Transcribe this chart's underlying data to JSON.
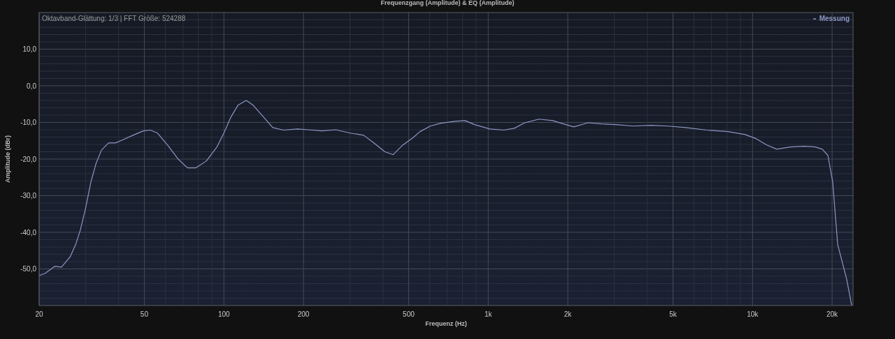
{
  "chart_data": {
    "type": "line",
    "title": "Frequenzgang (Amplitude) & EQ (Amplitude)",
    "xlabel": "Frequenz (Hz)",
    "ylabel": "Amplitude (dBr)",
    "annotations": [
      "Oktavband-Glättung: 1/3 | FFT Größe: 524288"
    ],
    "log": "x",
    "grid": true,
    "legend": "top right",
    "xlim": [
      20,
      24000
    ],
    "ylim": [
      -60,
      20
    ],
    "xticks": [
      20,
      {
        "value": 30,
        "label": null
      },
      {
        "value": 40,
        "label": null
      },
      50,
      {
        "value": 60,
        "label": null
      },
      {
        "value": 70,
        "label": null
      },
      {
        "value": 80,
        "label": null
      },
      {
        "value": 90,
        "label": null
      },
      100,
      200,
      {
        "value": 300,
        "label": null
      },
      {
        "value": 400,
        "label": null
      },
      500,
      {
        "value": 600,
        "label": null
      },
      {
        "value": 700,
        "label": null
      },
      {
        "value": 800,
        "label": null
      },
      {
        "value": 900,
        "label": null
      },
      {
        "value": 1000,
        "label": "1k"
      },
      {
        "value": 2000,
        "label": "2k"
      },
      {
        "value": 3000,
        "label": null
      },
      {
        "value": 4000,
        "label": null
      },
      {
        "value": 5000,
        "label": "5k"
      },
      {
        "value": 6000,
        "label": null
      },
      {
        "value": 7000,
        "label": null
      },
      {
        "value": 8000,
        "label": null
      },
      {
        "value": 9000,
        "label": null
      },
      {
        "value": 10000,
        "label": "10k"
      },
      {
        "value": 20000,
        "label": "20k"
      }
    ],
    "yticks": [
      {
        "value": -58,
        "label": null
      },
      {
        "value": -56,
        "label": null
      },
      {
        "value": -54,
        "label": null
      },
      {
        "value": -52,
        "label": null
      },
      {
        "value": -50,
        "label": "-50,0"
      },
      {
        "value": -48,
        "label": null
      },
      {
        "value": -46,
        "label": null
      },
      {
        "value": -44,
        "label": null
      },
      {
        "value": -42,
        "label": null
      },
      {
        "value": -40,
        "label": "-40,0"
      },
      {
        "value": -38,
        "label": null
      },
      {
        "value": -36,
        "label": null
      },
      {
        "value": -34,
        "label": null
      },
      {
        "value": -32,
        "label": null
      },
      {
        "value": -30,
        "label": "-30,0"
      },
      {
        "value": -28,
        "label": null
      },
      {
        "value": -26,
        "label": null
      },
      {
        "value": -24,
        "label": null
      },
      {
        "value": -22,
        "label": null
      },
      {
        "value": -20,
        "label": "-20,0"
      },
      {
        "value": -18,
        "label": null
      },
      {
        "value": -16,
        "label": null
      },
      {
        "value": -14,
        "label": null
      },
      {
        "value": -12,
        "label": null
      },
      {
        "value": -10,
        "label": "-10,0"
      },
      {
        "value": -8,
        "label": null
      },
      {
        "value": -6,
        "label": null
      },
      {
        "value": -4,
        "label": null
      },
      {
        "value": -2,
        "label": null
      },
      {
        "value": 0,
        "label": "0,0"
      },
      {
        "value": 2,
        "label": null
      },
      {
        "value": 4,
        "label": null
      },
      {
        "value": 6,
        "label": null
      },
      {
        "value": 8,
        "label": null
      },
      {
        "value": 10,
        "label": "10,0"
      },
      {
        "value": 12,
        "label": null
      },
      {
        "value": 14,
        "label": null
      },
      {
        "value": 16,
        "label": null
      },
      {
        "value": 18,
        "label": null
      }
    ],
    "series": [
      {
        "name": "Messung",
        "color": "#8d97c4",
        "x": [
          20,
          21.1,
          22.9,
          24.3,
          24.9,
          26.2,
          27.5,
          28.6,
          29.9,
          31.4,
          32.8,
          34.4,
          36.6,
          38.9,
          41.3,
          45.3,
          49.6,
          52.7,
          56,
          61.4,
          67.3,
          72.8,
          78.4,
          85.9,
          94.1,
          100,
          106,
          113,
          121.5,
          129,
          140,
          153,
          168,
          190,
          208,
          235,
          265,
          300,
          338,
          371,
          406,
          437,
          473,
          519,
          552,
          604,
          662,
          748,
          818,
          887,
          1014,
          1146,
          1256,
          1375,
          1554,
          1754,
          1924,
          2108,
          2383,
          2690,
          3040,
          3540,
          4120,
          4800,
          5590,
          6710,
          8060,
          9380,
          10280,
          11270,
          12340,
          13940,
          15740,
          17260,
          18360,
          19280,
          20100,
          20990,
          22700,
          23720
        ],
        "values": [
          -51.8,
          -51.2,
          -49.3,
          -49.5,
          -48.6,
          -46.7,
          -43.3,
          -39.5,
          -33.8,
          -26.2,
          -21.3,
          -17.6,
          -15.6,
          -15.6,
          -14.8,
          -13.5,
          -12.3,
          -12.1,
          -12.9,
          -16.3,
          -20.1,
          -22.4,
          -22.4,
          -20.5,
          -16.7,
          -12.9,
          -8.7,
          -5.3,
          -4.0,
          -5.3,
          -8.2,
          -11.4,
          -12.1,
          -11.8,
          -12.0,
          -12.3,
          -12.0,
          -12.9,
          -13.5,
          -15.7,
          -18.0,
          -18.8,
          -16.3,
          -14.2,
          -12.5,
          -11.0,
          -10.2,
          -9.7,
          -9.5,
          -10.6,
          -11.8,
          -12.1,
          -11.6,
          -10.1,
          -9.1,
          -9.5,
          -10.4,
          -11.2,
          -10.1,
          -10.4,
          -10.6,
          -11.0,
          -10.8,
          -11.0,
          -11.4,
          -12.1,
          -12.5,
          -13.3,
          -14.4,
          -16.1,
          -17.3,
          -16.7,
          -16.5,
          -16.7,
          -17.3,
          -19.0,
          -26.2,
          -43.3,
          -52.8,
          -60
        ]
      }
    ]
  }
}
